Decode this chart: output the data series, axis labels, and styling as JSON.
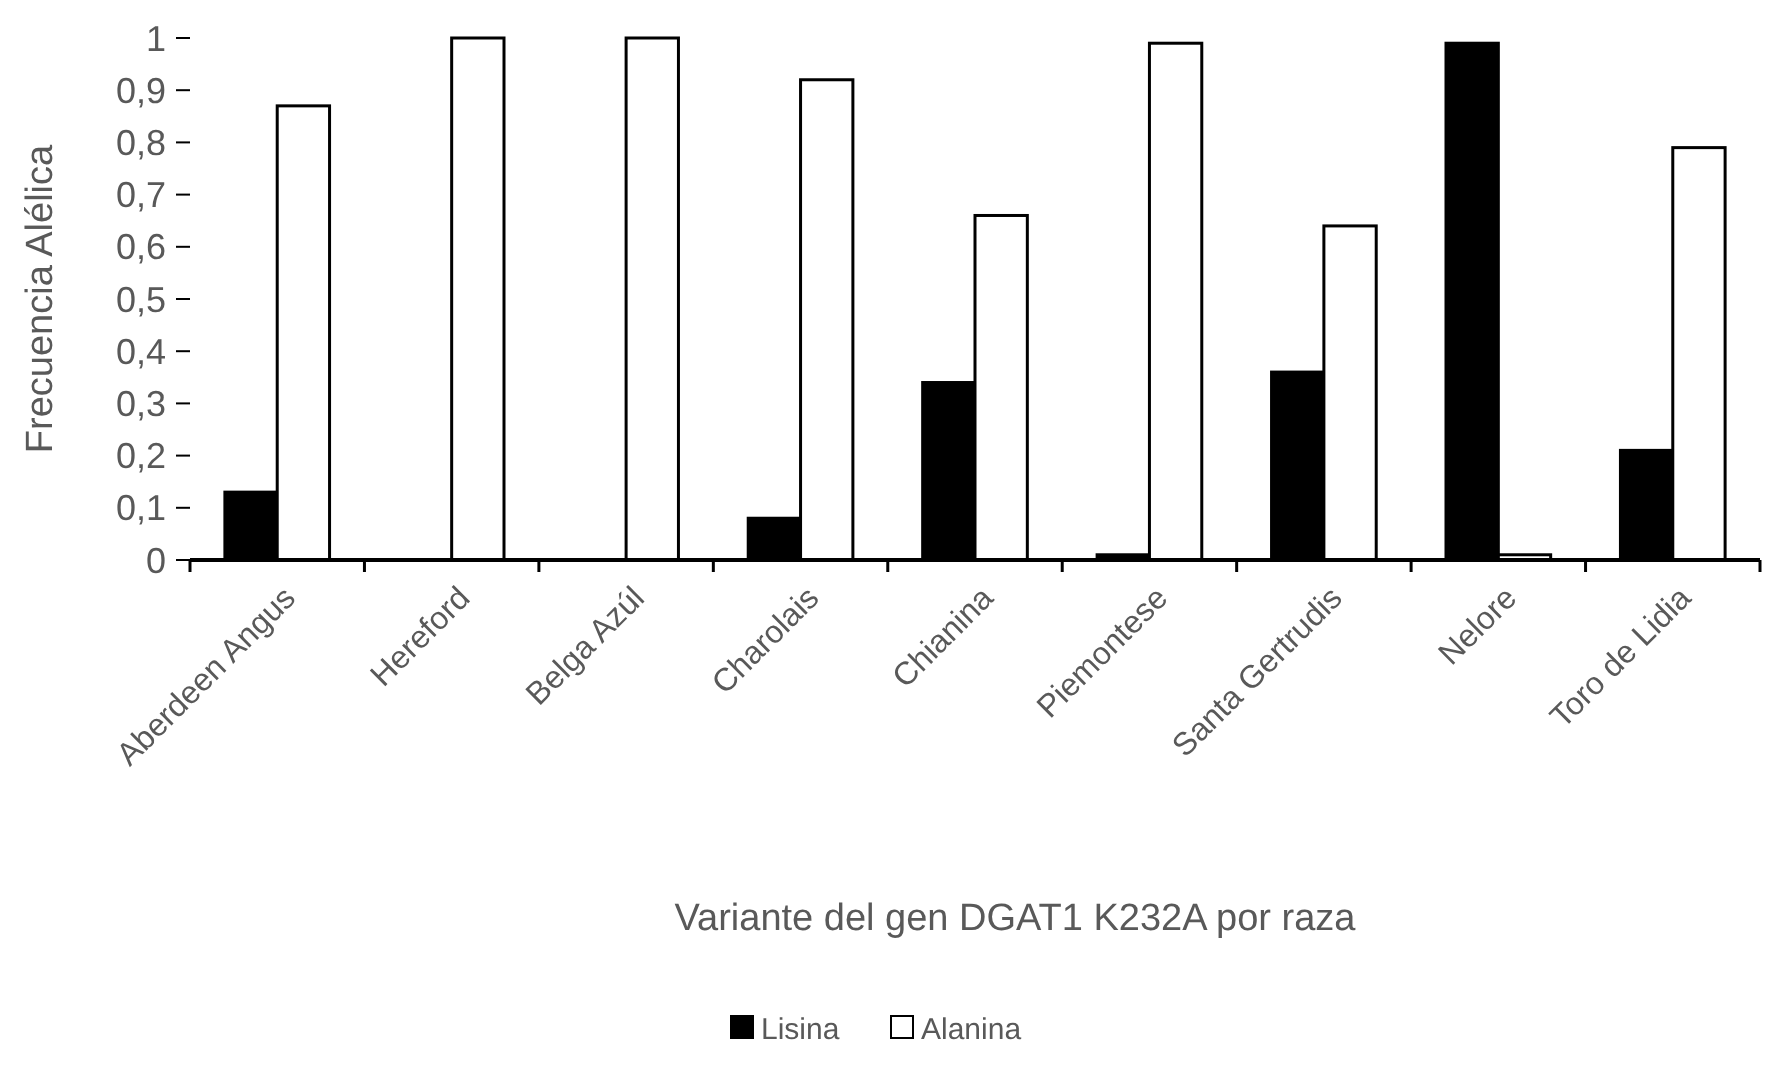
{
  "chart_data": {
    "type": "bar",
    "xlabel": "Variante del gen DGAT1 K232A por raza",
    "ylabel": "Frecuencia Alélica",
    "categories": [
      "Aberdeen Angus",
      "Hereford",
      "Belga Azúl",
      "Charolais",
      "Chianina",
      "Piemontese",
      "Santa Gertrudis",
      "Nelore",
      "Toro de Lidia"
    ],
    "series": [
      {
        "name": "Lisina",
        "color": "#000000",
        "values": [
          0.13,
          0,
          0,
          0.08,
          0.34,
          0.01,
          0.36,
          0.99,
          0.21
        ]
      },
      {
        "name": "Alanina",
        "color": "#ffffff",
        "values": [
          0.87,
          1,
          1,
          0.92,
          0.66,
          0.99,
          0.64,
          0.01,
          0.79
        ]
      }
    ],
    "ylim": [
      0,
      1
    ],
    "yticks": [
      {
        "value": 0,
        "label": "0"
      },
      {
        "value": 0.1,
        "label": "0,1"
      },
      {
        "value": 0.2,
        "label": "0,2"
      },
      {
        "value": 0.3,
        "label": "0,3"
      },
      {
        "value": 0.4,
        "label": "0,4"
      },
      {
        "value": 0.5,
        "label": "0,5"
      },
      {
        "value": 0.6,
        "label": "0,6"
      },
      {
        "value": 0.7,
        "label": "0,7"
      },
      {
        "value": 0.8,
        "label": "0,8"
      },
      {
        "value": 0.9,
        "label": "0,9"
      },
      {
        "value": 1,
        "label": "1"
      }
    ],
    "grid": false,
    "legend": "bottom"
  }
}
